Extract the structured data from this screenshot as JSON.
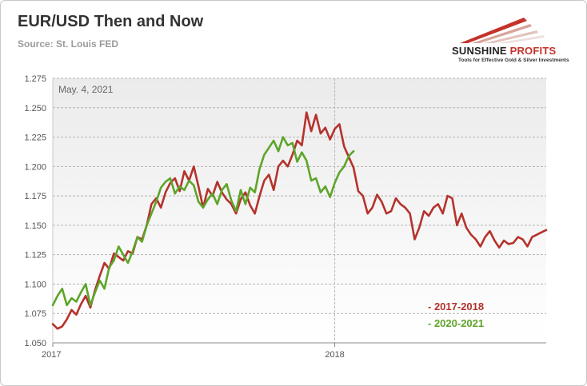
{
  "title": "EUR/USD Then and Now",
  "source": "Source: St. Louis FED",
  "logo": {
    "name_part1": "SUNSHINE",
    "name_part2": " PROFITS",
    "tagline": "Tools for Effective Gold & Silver Investments"
  },
  "chart_data": {
    "type": "line",
    "annotation": "May. 4, 2021",
    "x_tick_labels": [
      "2017",
      "2018"
    ],
    "x_ticks": [
      0,
      12
    ],
    "xlim": [
      0,
      21
    ],
    "ylim": [
      1.05,
      1.275
    ],
    "y_ticks": [
      1.05,
      1.075,
      1.1,
      1.125,
      1.15,
      1.175,
      1.2,
      1.225,
      1.25,
      1.275
    ],
    "y_tick_labels": [
      "1.050",
      "1.075",
      "1.100",
      "1.125",
      "1.150",
      "1.175",
      "1.200",
      "1.225",
      "1.250",
      "1.275"
    ],
    "grid": true,
    "legend_position": "bottom-right",
    "series": [
      {
        "name": "- 2017-2018",
        "color": "#b5322c",
        "x": [
          0,
          0.2,
          0.4,
          0.6,
          0.8,
          1.0,
          1.2,
          1.4,
          1.6,
          1.8,
          2.0,
          2.2,
          2.4,
          2.6,
          2.8,
          3.0,
          3.2,
          3.4,
          3.6,
          3.8,
          4.0,
          4.2,
          4.4,
          4.6,
          4.8,
          5.0,
          5.2,
          5.4,
          5.6,
          5.8,
          6.0,
          6.2,
          6.4,
          6.6,
          6.8,
          7.0,
          7.2,
          7.4,
          7.6,
          7.8,
          8.0,
          8.2,
          8.4,
          8.6,
          8.8,
          9.0,
          9.2,
          9.4,
          9.6,
          9.8,
          10.0,
          10.2,
          10.4,
          10.6,
          10.8,
          11.0,
          11.2,
          11.4,
          11.6,
          11.8,
          12.0,
          12.2,
          12.4,
          12.6,
          12.8,
          13.0,
          13.2,
          13.4,
          13.6,
          13.8,
          14.0,
          14.2,
          14.4,
          14.6,
          14.8,
          15.0,
          15.2,
          15.4,
          15.6,
          15.8,
          16.0,
          16.2,
          16.4,
          16.6,
          16.8,
          17.0,
          17.2,
          17.4,
          17.6,
          17.8,
          18.0,
          18.2,
          18.4,
          18.6,
          18.8,
          19.0,
          19.2,
          19.4,
          19.6,
          19.8,
          20.0,
          20.2,
          20.4,
          20.6,
          20.8,
          21.0
        ],
        "values": [
          1.066,
          1.062,
          1.064,
          1.07,
          1.078,
          1.074,
          1.083,
          1.09,
          1.08,
          1.095,
          1.107,
          1.118,
          1.113,
          1.126,
          1.123,
          1.12,
          1.128,
          1.126,
          1.14,
          1.138,
          1.15,
          1.168,
          1.173,
          1.165,
          1.178,
          1.186,
          1.19,
          1.179,
          1.196,
          1.188,
          1.2,
          1.183,
          1.165,
          1.181,
          1.175,
          1.187,
          1.178,
          1.172,
          1.168,
          1.16,
          1.172,
          1.178,
          1.167,
          1.16,
          1.175,
          1.188,
          1.193,
          1.18,
          1.2,
          1.205,
          1.2,
          1.21,
          1.222,
          1.218,
          1.246,
          1.23,
          1.244,
          1.228,
          1.233,
          1.223,
          1.232,
          1.236,
          1.217,
          1.208,
          1.199,
          1.179,
          1.175,
          1.16,
          1.165,
          1.176,
          1.17,
          1.16,
          1.162,
          1.173,
          1.168,
          1.165,
          1.16,
          1.138,
          1.148,
          1.162,
          1.158,
          1.165,
          1.168,
          1.16,
          1.175,
          1.173,
          1.15,
          1.16,
          1.148,
          1.142,
          1.138,
          1.132,
          1.14,
          1.145,
          1.137,
          1.131,
          1.137,
          1.134,
          1.135,
          1.14,
          1.138,
          1.132,
          1.14,
          1.142,
          1.144,
          1.146
        ]
      },
      {
        "name": "- 2020-2021",
        "color": "#5da52a",
        "x": [
          0,
          0.2,
          0.4,
          0.6,
          0.8,
          1.0,
          1.2,
          1.4,
          1.6,
          1.8,
          2.0,
          2.2,
          2.4,
          2.6,
          2.8,
          3.0,
          3.2,
          3.4,
          3.6,
          3.8,
          4.0,
          4.2,
          4.4,
          4.6,
          4.8,
          5.0,
          5.2,
          5.4,
          5.6,
          5.8,
          6.0,
          6.2,
          6.4,
          6.6,
          6.8,
          7.0,
          7.2,
          7.4,
          7.6,
          7.8,
          8.0,
          8.2,
          8.4,
          8.6,
          8.8,
          9.0,
          9.2,
          9.4,
          9.6,
          9.8,
          10.0,
          10.2,
          10.4,
          10.6,
          10.8,
          11.0,
          11.2,
          11.4,
          11.6,
          11.8,
          12.0,
          12.2,
          12.4,
          12.6,
          12.8
        ],
        "values": [
          1.082,
          1.09,
          1.096,
          1.082,
          1.088,
          1.085,
          1.093,
          1.1,
          1.082,
          1.093,
          1.103,
          1.096,
          1.114,
          1.12,
          1.132,
          1.125,
          1.118,
          1.128,
          1.14,
          1.136,
          1.15,
          1.16,
          1.17,
          1.182,
          1.187,
          1.19,
          1.177,
          1.183,
          1.18,
          1.188,
          1.184,
          1.17,
          1.165,
          1.172,
          1.177,
          1.168,
          1.18,
          1.185,
          1.171,
          1.162,
          1.18,
          1.168,
          1.182,
          1.178,
          1.198,
          1.21,
          1.216,
          1.222,
          1.213,
          1.225,
          1.218,
          1.22,
          1.204,
          1.212,
          1.205,
          1.188,
          1.19,
          1.178,
          1.183,
          1.174,
          1.186,
          1.195,
          1.2,
          1.209,
          1.213
        ]
      }
    ]
  }
}
